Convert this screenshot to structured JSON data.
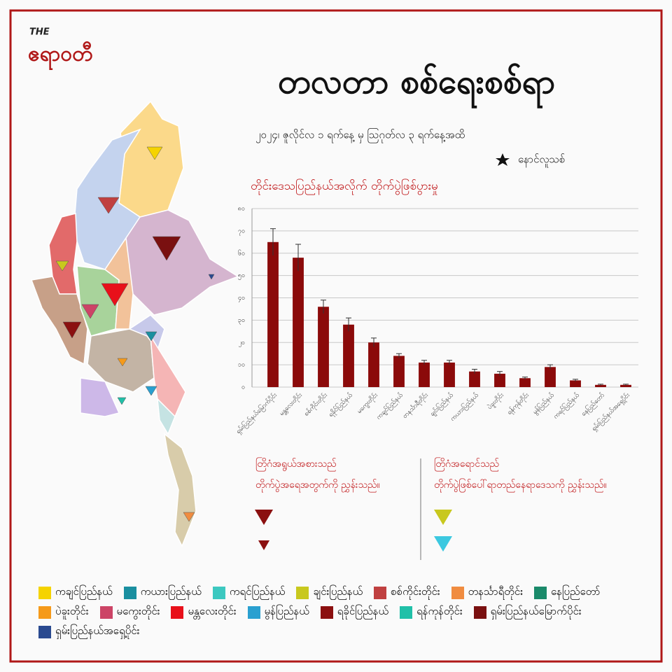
{
  "header": {
    "logo_prefix": "THE",
    "logo": "ဧရာဝတီ",
    "title": "တလတာ စစ်ရေးစစ်ရာ",
    "subtitle": "၂၀၂၄၊ ဇူလိုင်လ ၁ ရက်နေ့ မှ ဩဂုတ်လ ၃ ရက်နေ့အထိ",
    "star_note": "နောင်လူသစ်"
  },
  "chart_data": {
    "type": "bar",
    "title": "တိုင်းဒေသပြည်နယ်အလိုက် တိုက်ပွဲဖြစ်ပွားမှု",
    "categories": [
      "ရှမ်းပြည်နယ်မြောက်ပိုင်း",
      "မန္တလေးတိုင်း",
      "စစ်ကိုင်းတိုင်း",
      "ရခိုင်ပြည်နယ်",
      "မကွေးတိုင်း",
      "ကချင်ပြည်နယ်",
      "တနင်္သာရီတိုင်း",
      "ချင်းပြည်နယ်",
      "ကယားပြည်နယ်",
      "ပဲခူးတိုင်း",
      "ရန်ကုန်တိုင်း",
      "မွန်ပြည်နယ်",
      "ကရင်ပြည်နယ်",
      "နေပြည်တော်",
      "ရှမ်းပြည်နယ်အရှေ့ပိုင်း"
    ],
    "values": [
      65,
      58,
      36,
      28,
      20,
      14,
      11,
      11,
      7,
      6,
      4,
      9,
      3,
      1,
      1
    ],
    "errors": [
      6,
      6,
      3,
      3,
      2,
      1,
      1,
      1,
      1,
      1,
      0.5,
      1,
      0.5,
      0.3,
      0.3
    ],
    "color": "#8b0a0a",
    "ylim": [
      0,
      80
    ],
    "yticks": [
      {
        "value": 0,
        "label": "၀"
      },
      {
        "value": 10,
        "label": "၁၀"
      },
      {
        "value": 20,
        "label": "၂၀"
      },
      {
        "value": 30,
        "label": "၃၀"
      },
      {
        "value": 40,
        "label": "၄၀"
      },
      {
        "value": 50,
        "label": "၅၀"
      },
      {
        "value": 60,
        "label": "၆၀"
      },
      {
        "value": 70,
        "label": "၇၀"
      },
      {
        "value": 80,
        "label": "၈၀"
      }
    ],
    "grid": true
  },
  "key": {
    "size_title": "တြိဂံအရွယ်အစားသည်",
    "size_text": "တိုက်ပွဲအရေအတွက်ကို ညွှန်းသည်။",
    "color_title": "တြိဂံအရောင်သည်",
    "color_text": "တိုက်ပွဲဖြစ်ပေါ်ရာတည်နေရာဒေသကို ညွှန်းသည်။"
  },
  "legend": {
    "items": [
      {
        "name": "ကချင်ပြည်နယ်",
        "color": "#f5d300"
      },
      {
        "name": "ကယားပြည်နယ်",
        "color": "#1a8fa0"
      },
      {
        "name": "ကရင်ပြည်နယ်",
        "color": "#3cc8c0"
      },
      {
        "name": "ချင်းပြည်နယ်",
        "color": "#c8c81e"
      },
      {
        "name": "စစ်ကိုင်းတိုင်း",
        "color": "#c04040"
      },
      {
        "name": "တနင်္သာရီတိုင်း",
        "color": "#f08c40"
      },
      {
        "name": "နေပြည်တော်",
        "color": "#1a8a6a"
      },
      {
        "name": "ပဲခူးတိုင်း",
        "color": "#f59a1a"
      },
      {
        "name": "မကွေးတိုင်း",
        "color": "#cc4466"
      },
      {
        "name": "မန္တလေးတိုင်း",
        "color": "#e8101a"
      },
      {
        "name": "မွန်ပြည်နယ်",
        "color": "#2aa0d0"
      },
      {
        "name": "ရခိုင်ပြည်နယ်",
        "color": "#8b1010"
      },
      {
        "name": "ရန်ကုန်တိုင်း",
        "color": "#20c0a8"
      },
      {
        "name": "ရှမ်းပြည်နယ်မြောက်ပိုင်း",
        "color": "#7a1010"
      },
      {
        "name": "ရှမ်းပြည်နယ်အရှေ့ပိုင်း",
        "color": "#2a4a90"
      }
    ]
  }
}
